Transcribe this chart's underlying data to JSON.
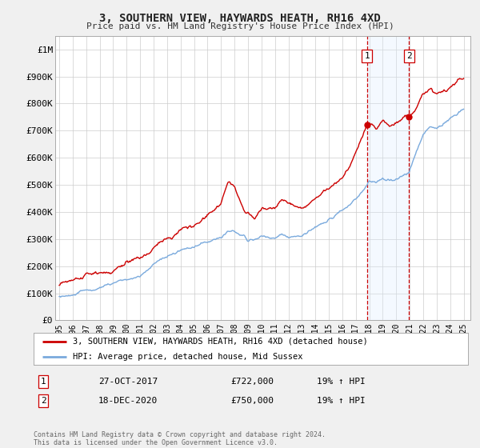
{
  "title": "3, SOUTHERN VIEW, HAYWARDS HEATH, RH16 4XD",
  "subtitle": "Price paid vs. HM Land Registry's House Price Index (HPI)",
  "ylabel_ticks": [
    "£0",
    "£100K",
    "£200K",
    "£300K",
    "£400K",
    "£500K",
    "£600K",
    "£700K",
    "£800K",
    "£900K",
    "£1M"
  ],
  "ytick_values": [
    0,
    100000,
    200000,
    300000,
    400000,
    500000,
    600000,
    700000,
    800000,
    900000,
    1000000
  ],
  "ylim": [
    0,
    1050000
  ],
  "xlim_start": 1994.7,
  "xlim_end": 2025.5,
  "sale1_x": 2017.82,
  "sale1_y": 722000,
  "sale2_x": 2020.96,
  "sale2_y": 750000,
  "sale1_label": "27-OCT-2017",
  "sale1_price": "£722,000",
  "sale1_hpi": "19% ↑ HPI",
  "sale2_label": "18-DEC-2020",
  "sale2_price": "£750,000",
  "sale2_hpi": "19% ↑ HPI",
  "hpi_color": "#7aaadd",
  "price_color": "#cc0000",
  "vline_color": "#cc0000",
  "shade_color": "#ddeeff",
  "legend_label1": "3, SOUTHERN VIEW, HAYWARDS HEATH, RH16 4XD (detached house)",
  "legend_label2": "HPI: Average price, detached house, Mid Sussex",
  "footnote": "Contains HM Land Registry data © Crown copyright and database right 2024.\nThis data is licensed under the Open Government Licence v3.0.",
  "background_color": "#f0f0f0",
  "plot_bg_color": "#ffffff",
  "grid_color": "#cccccc"
}
